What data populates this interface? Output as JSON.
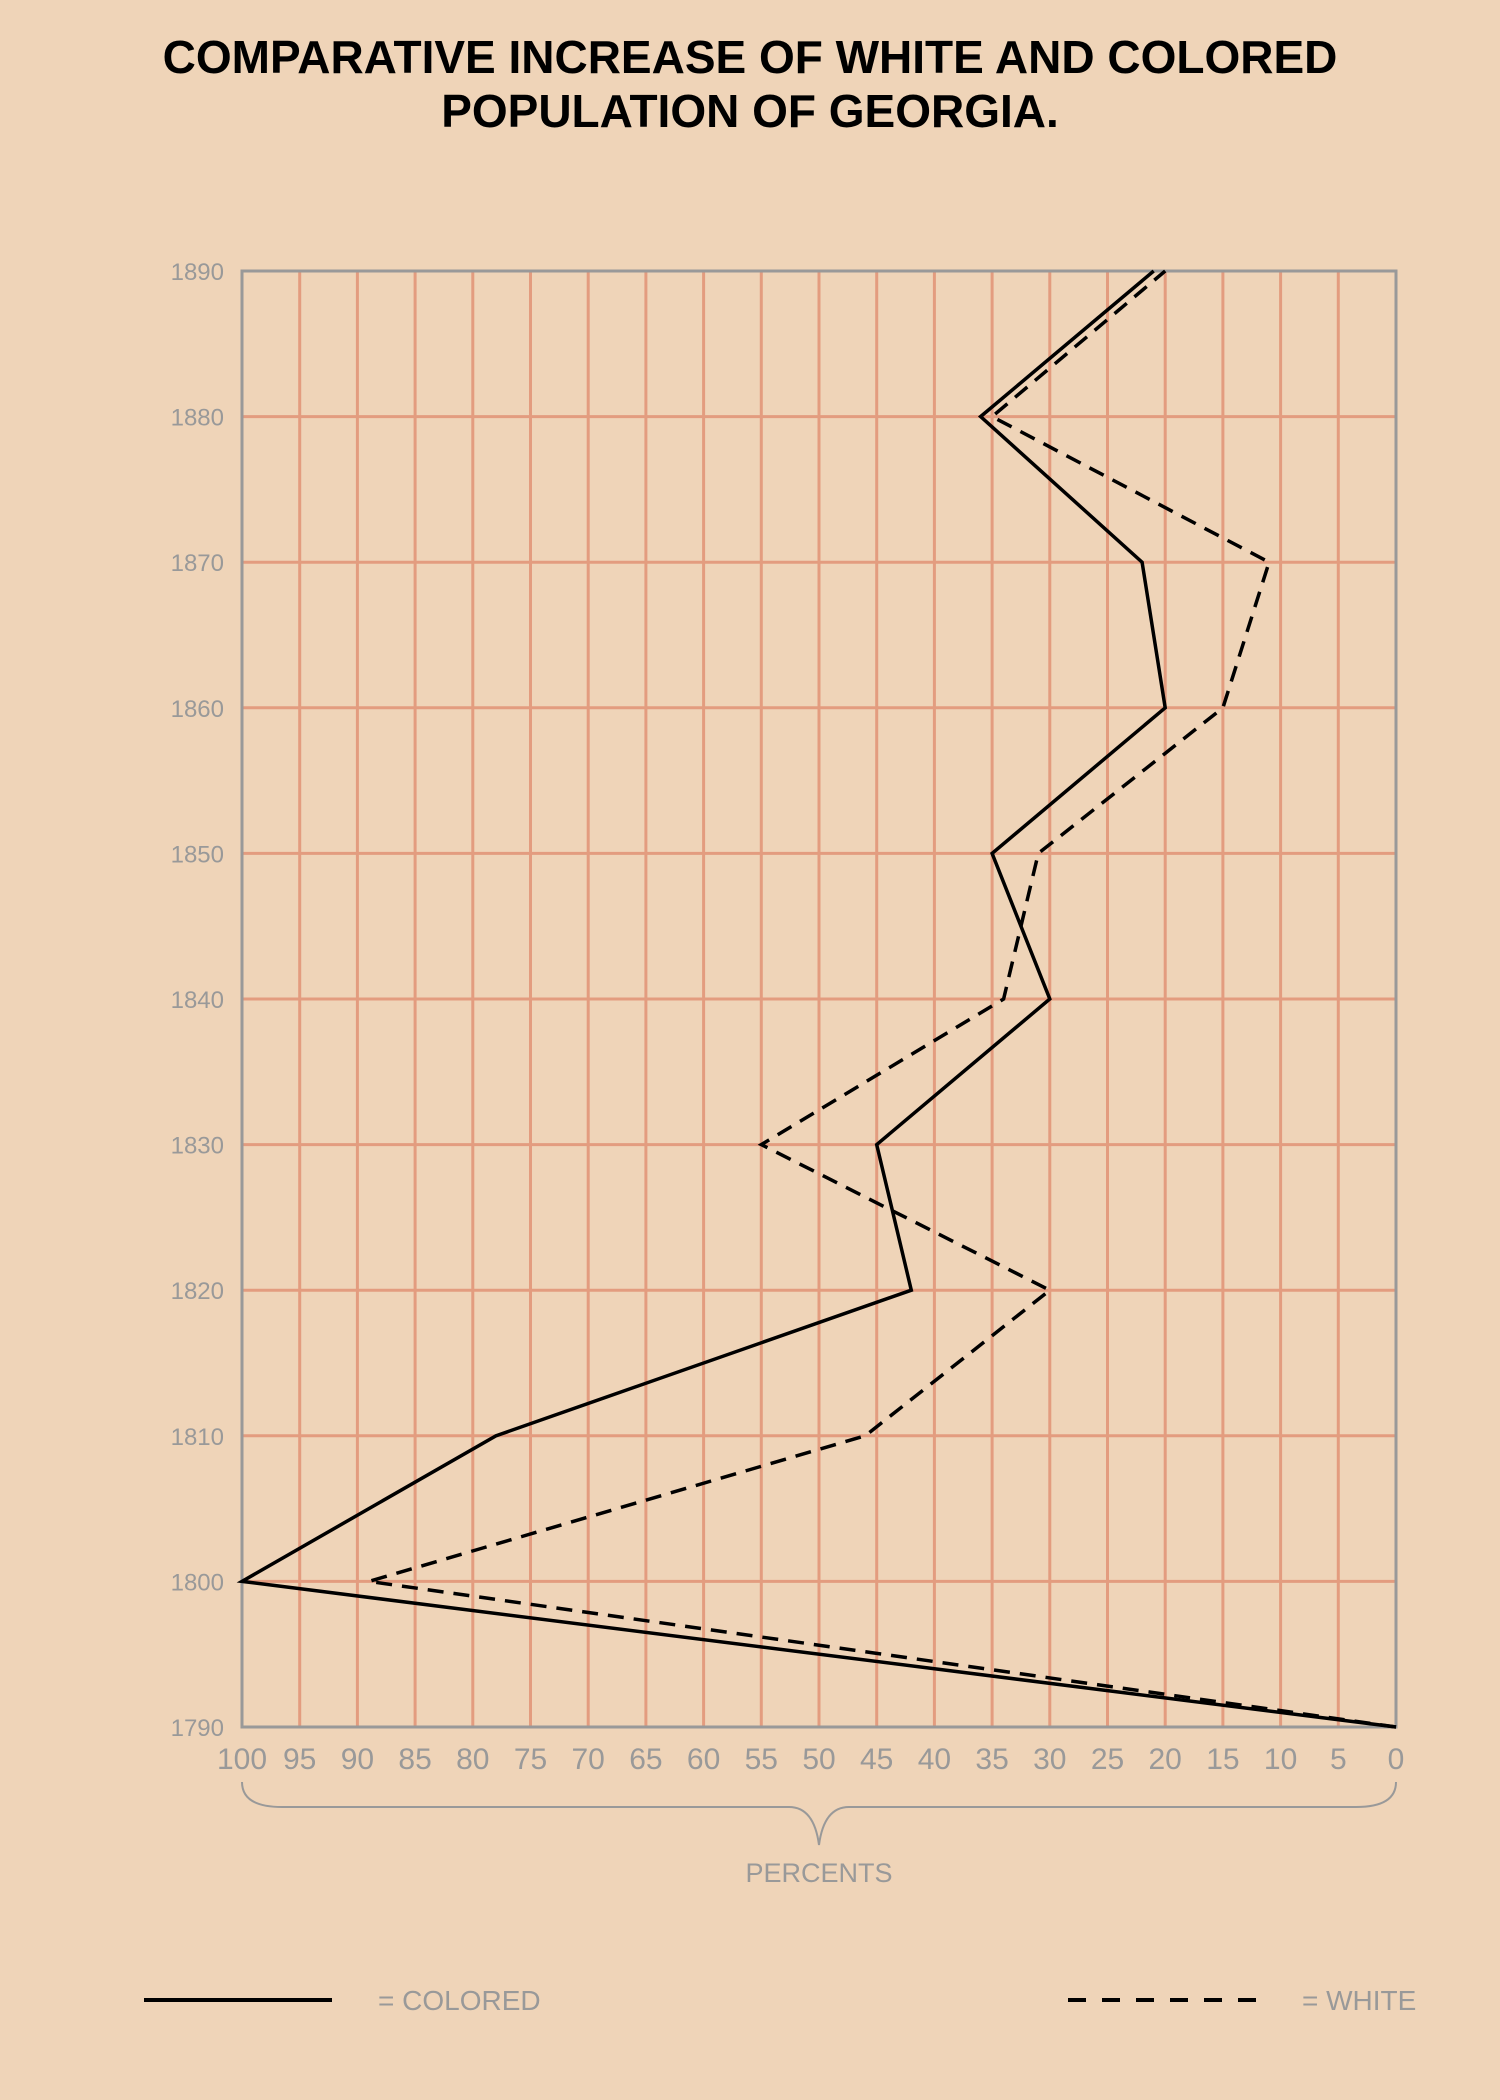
{
  "title": {
    "line1": "COMPARATIVE INCREASE OF WHITE AND COLORED",
    "line2": "POPULATION OF GEORGIA."
  },
  "colors": {
    "background": "#efd4b8",
    "grid": "#e39c7f",
    "axis": "#999999",
    "series": "#000000"
  },
  "chart_data": {
    "type": "line",
    "title": "COMPARATIVE INCREASE OF WHITE AND COLORED POPULATION OF GEORGIA.",
    "xlabel": "PERCENTS",
    "ylabel": "",
    "xlim": [
      100,
      0
    ],
    "ylim": [
      1790,
      1890
    ],
    "x_ticks": [
      "100",
      "95",
      "90",
      "85",
      "80",
      "75",
      "70",
      "65",
      "60",
      "55",
      "50",
      "45",
      "40",
      "35",
      "30",
      "25",
      "20",
      "15",
      "10",
      "5",
      "0"
    ],
    "x_tick_values": [
      100,
      95,
      90,
      85,
      80,
      75,
      70,
      65,
      60,
      55,
      50,
      45,
      40,
      35,
      30,
      25,
      20,
      15,
      10,
      5,
      0
    ],
    "y_ticks": [
      "1790",
      "1800",
      "1810",
      "1820",
      "1830",
      "1840",
      "1850",
      "1860",
      "1870",
      "1880",
      "1890"
    ],
    "y_tick_values": [
      1790,
      1800,
      1810,
      1820,
      1830,
      1840,
      1850,
      1860,
      1870,
      1880,
      1890
    ],
    "grid": true,
    "series": [
      {
        "name": "COLORED",
        "style": "solid",
        "legend_label": "= COLORED",
        "points": [
          {
            "year": 1790,
            "percent": 0
          },
          {
            "year": 1800,
            "percent": 100
          },
          {
            "year": 1810,
            "percent": 78
          },
          {
            "year": 1820,
            "percent": 42
          },
          {
            "year": 1830,
            "percent": 45
          },
          {
            "year": 1840,
            "percent": 30
          },
          {
            "year": 1850,
            "percent": 35
          },
          {
            "year": 1860,
            "percent": 20
          },
          {
            "year": 1870,
            "percent": 22
          },
          {
            "year": 1880,
            "percent": 36
          },
          {
            "year": 1890,
            "percent": 21
          }
        ]
      },
      {
        "name": "WHITE",
        "style": "dashed",
        "legend_label": "= WHITE",
        "points": [
          {
            "year": 1790,
            "percent": 0
          },
          {
            "year": 1800,
            "percent": 89
          },
          {
            "year": 1810,
            "percent": 46
          },
          {
            "year": 1820,
            "percent": 30
          },
          {
            "year": 1830,
            "percent": 55
          },
          {
            "year": 1840,
            "percent": 34
          },
          {
            "year": 1850,
            "percent": 31
          },
          {
            "year": 1860,
            "percent": 15
          },
          {
            "year": 1870,
            "percent": 11
          },
          {
            "year": 1880,
            "percent": 35
          },
          {
            "year": 1890,
            "percent": 20
          }
        ]
      }
    ],
    "legend": {
      "placement": "bottom",
      "colored_label": "= COLORED",
      "white_label": "= WHITE"
    }
  }
}
